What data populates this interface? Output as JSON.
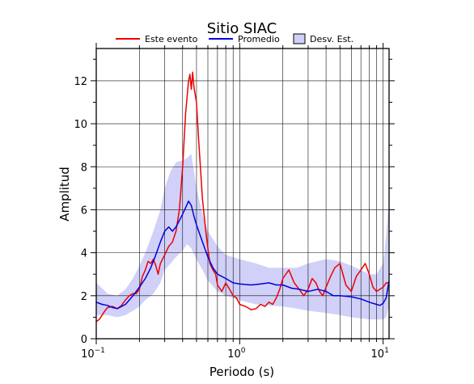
{
  "chart_data": {
    "type": "line",
    "title": "Sitio SIAC",
    "xlabel": "Periodo (s)",
    "ylabel": "Amplitud",
    "xscale": "log",
    "xlim": [
      0.1,
      11
    ],
    "ylim": [
      0,
      13.5
    ],
    "grid": true,
    "legend_position": "top",
    "x_ticks": [
      {
        "value": 0.1,
        "base": "10",
        "exp": "−1"
      },
      {
        "value": 1,
        "base": "10",
        "exp": "0"
      },
      {
        "value": 10,
        "base": "10",
        "exp": "1"
      }
    ],
    "y_ticks": [
      0,
      2,
      4,
      6,
      8,
      10,
      12
    ],
    "legend": [
      {
        "label": "Este evento",
        "kind": "line",
        "color": "#ee0000"
      },
      {
        "label": "Promedio",
        "kind": "line",
        "color": "#0000dd"
      },
      {
        "label": "Desv. Est.",
        "kind": "box",
        "color": "#d0d0f8"
      }
    ],
    "series": [
      {
        "name": "Este evento",
        "color": "#ee0000",
        "points": [
          [
            0.1,
            0.8
          ],
          [
            0.105,
            0.9
          ],
          [
            0.11,
            1.1
          ],
          [
            0.115,
            1.3
          ],
          [
            0.12,
            1.45
          ],
          [
            0.13,
            1.5
          ],
          [
            0.14,
            1.4
          ],
          [
            0.15,
            1.55
          ],
          [
            0.16,
            1.8
          ],
          [
            0.17,
            2.0
          ],
          [
            0.18,
            2.1
          ],
          [
            0.19,
            2.1
          ],
          [
            0.2,
            2.3
          ],
          [
            0.21,
            2.9
          ],
          [
            0.22,
            3.2
          ],
          [
            0.23,
            3.6
          ],
          [
            0.24,
            3.5
          ],
          [
            0.25,
            3.7
          ],
          [
            0.26,
            3.4
          ],
          [
            0.27,
            3.0
          ],
          [
            0.28,
            3.5
          ],
          [
            0.3,
            3.9
          ],
          [
            0.32,
            4.3
          ],
          [
            0.34,
            4.5
          ],
          [
            0.36,
            5.0
          ],
          [
            0.38,
            6.0
          ],
          [
            0.4,
            8.0
          ],
          [
            0.42,
            10.5
          ],
          [
            0.44,
            12.0
          ],
          [
            0.45,
            12.3
          ],
          [
            0.46,
            11.6
          ],
          [
            0.47,
            12.4
          ],
          [
            0.48,
            11.7
          ],
          [
            0.5,
            11.0
          ],
          [
            0.52,
            9.0
          ],
          [
            0.55,
            6.5
          ],
          [
            0.58,
            5.0
          ],
          [
            0.6,
            4.2
          ],
          [
            0.62,
            3.5
          ],
          [
            0.65,
            3.2
          ],
          [
            0.68,
            3.0
          ],
          [
            0.7,
            2.5
          ],
          [
            0.75,
            2.2
          ],
          [
            0.8,
            2.6
          ],
          [
            0.85,
            2.3
          ],
          [
            0.9,
            2.0
          ],
          [
            0.95,
            1.9
          ],
          [
            1.0,
            1.6
          ],
          [
            1.1,
            1.5
          ],
          [
            1.2,
            1.35
          ],
          [
            1.3,
            1.4
          ],
          [
            1.4,
            1.6
          ],
          [
            1.5,
            1.5
          ],
          [
            1.6,
            1.7
          ],
          [
            1.7,
            1.6
          ],
          [
            1.8,
            1.9
          ],
          [
            1.9,
            2.3
          ],
          [
            2.0,
            2.8
          ],
          [
            2.2,
            3.2
          ],
          [
            2.4,
            2.6
          ],
          [
            2.6,
            2.3
          ],
          [
            2.8,
            2.0
          ],
          [
            3.0,
            2.3
          ],
          [
            3.2,
            2.8
          ],
          [
            3.4,
            2.6
          ],
          [
            3.6,
            2.2
          ],
          [
            3.8,
            2.0
          ],
          [
            4.0,
            2.4
          ],
          [
            4.3,
            2.9
          ],
          [
            4.6,
            3.3
          ],
          [
            5.0,
            3.5
          ],
          [
            5.5,
            2.5
          ],
          [
            6.0,
            2.2
          ],
          [
            6.5,
            2.9
          ],
          [
            7.0,
            3.2
          ],
          [
            7.5,
            3.5
          ],
          [
            8.0,
            3.0
          ],
          [
            8.5,
            2.4
          ],
          [
            9.0,
            2.2
          ],
          [
            9.5,
            2.3
          ],
          [
            10.0,
            2.4
          ],
          [
            10.5,
            2.6
          ],
          [
            11.0,
            2.6
          ]
        ]
      },
      {
        "name": "Promedio",
        "color": "#0000dd",
        "points": [
          [
            0.1,
            1.7
          ],
          [
            0.11,
            1.6
          ],
          [
            0.12,
            1.55
          ],
          [
            0.13,
            1.45
          ],
          [
            0.14,
            1.4
          ],
          [
            0.15,
            1.5
          ],
          [
            0.16,
            1.6
          ],
          [
            0.17,
            1.8
          ],
          [
            0.18,
            2.0
          ],
          [
            0.19,
            2.2
          ],
          [
            0.2,
            2.4
          ],
          [
            0.22,
            2.8
          ],
          [
            0.24,
            3.3
          ],
          [
            0.26,
            3.9
          ],
          [
            0.28,
            4.5
          ],
          [
            0.3,
            5.0
          ],
          [
            0.32,
            5.2
          ],
          [
            0.34,
            5.0
          ],
          [
            0.36,
            5.2
          ],
          [
            0.38,
            5.5
          ],
          [
            0.4,
            5.8
          ],
          [
            0.42,
            6.1
          ],
          [
            0.44,
            6.4
          ],
          [
            0.46,
            6.2
          ],
          [
            0.48,
            5.7
          ],
          [
            0.5,
            5.3
          ],
          [
            0.55,
            4.5
          ],
          [
            0.6,
            3.8
          ],
          [
            0.65,
            3.3
          ],
          [
            0.7,
            3.0
          ],
          [
            0.8,
            2.8
          ],
          [
            0.9,
            2.6
          ],
          [
            1.0,
            2.55
          ],
          [
            1.2,
            2.5
          ],
          [
            1.4,
            2.55
          ],
          [
            1.6,
            2.6
          ],
          [
            1.8,
            2.5
          ],
          [
            2.0,
            2.5
          ],
          [
            2.3,
            2.35
          ],
          [
            2.6,
            2.3
          ],
          [
            3.0,
            2.2
          ],
          [
            3.5,
            2.3
          ],
          [
            4.0,
            2.2
          ],
          [
            4.5,
            2.0
          ],
          [
            5.0,
            2.0
          ],
          [
            6.0,
            1.95
          ],
          [
            7.0,
            1.85
          ],
          [
            8.0,
            1.7
          ],
          [
            9.0,
            1.6
          ],
          [
            9.5,
            1.55
          ],
          [
            10.0,
            1.65
          ],
          [
            10.5,
            1.9
          ],
          [
            11.0,
            2.7
          ]
        ]
      },
      {
        "name": "Desv. Est.",
        "kind": "band",
        "color": "#d0d0f8",
        "x": [
          0.1,
          0.12,
          0.14,
          0.16,
          0.18,
          0.2,
          0.22,
          0.25,
          0.28,
          0.3,
          0.33,
          0.36,
          0.4,
          0.43,
          0.46,
          0.5,
          0.55,
          0.6,
          0.7,
          0.8,
          1.0,
          1.3,
          1.6,
          2.0,
          2.5,
          3.0,
          4.0,
          5.0,
          6.0,
          7.0,
          8.0,
          9.0,
          10.0,
          10.5,
          11.0
        ],
        "upper": [
          2.6,
          2.1,
          2.0,
          2.3,
          2.8,
          3.4,
          4.0,
          5.0,
          6.0,
          7.0,
          7.8,
          8.2,
          8.3,
          8.4,
          8.6,
          7.0,
          5.8,
          5.0,
          4.3,
          3.9,
          3.7,
          3.5,
          3.3,
          3.3,
          3.3,
          3.5,
          3.7,
          3.6,
          3.4,
          3.2,
          3.0,
          3.0,
          3.5,
          4.8,
          6.5
        ],
        "lower": [
          1.1,
          1.1,
          1.0,
          1.1,
          1.3,
          1.5,
          1.8,
          2.1,
          2.6,
          3.2,
          3.5,
          3.8,
          4.1,
          4.4,
          4.2,
          3.7,
          3.2,
          2.7,
          2.2,
          2.0,
          1.8,
          1.6,
          1.55,
          1.5,
          1.4,
          1.3,
          1.2,
          1.1,
          1.0,
          0.95,
          0.9,
          0.9,
          0.9,
          1.0,
          1.5
        ]
      }
    ]
  }
}
